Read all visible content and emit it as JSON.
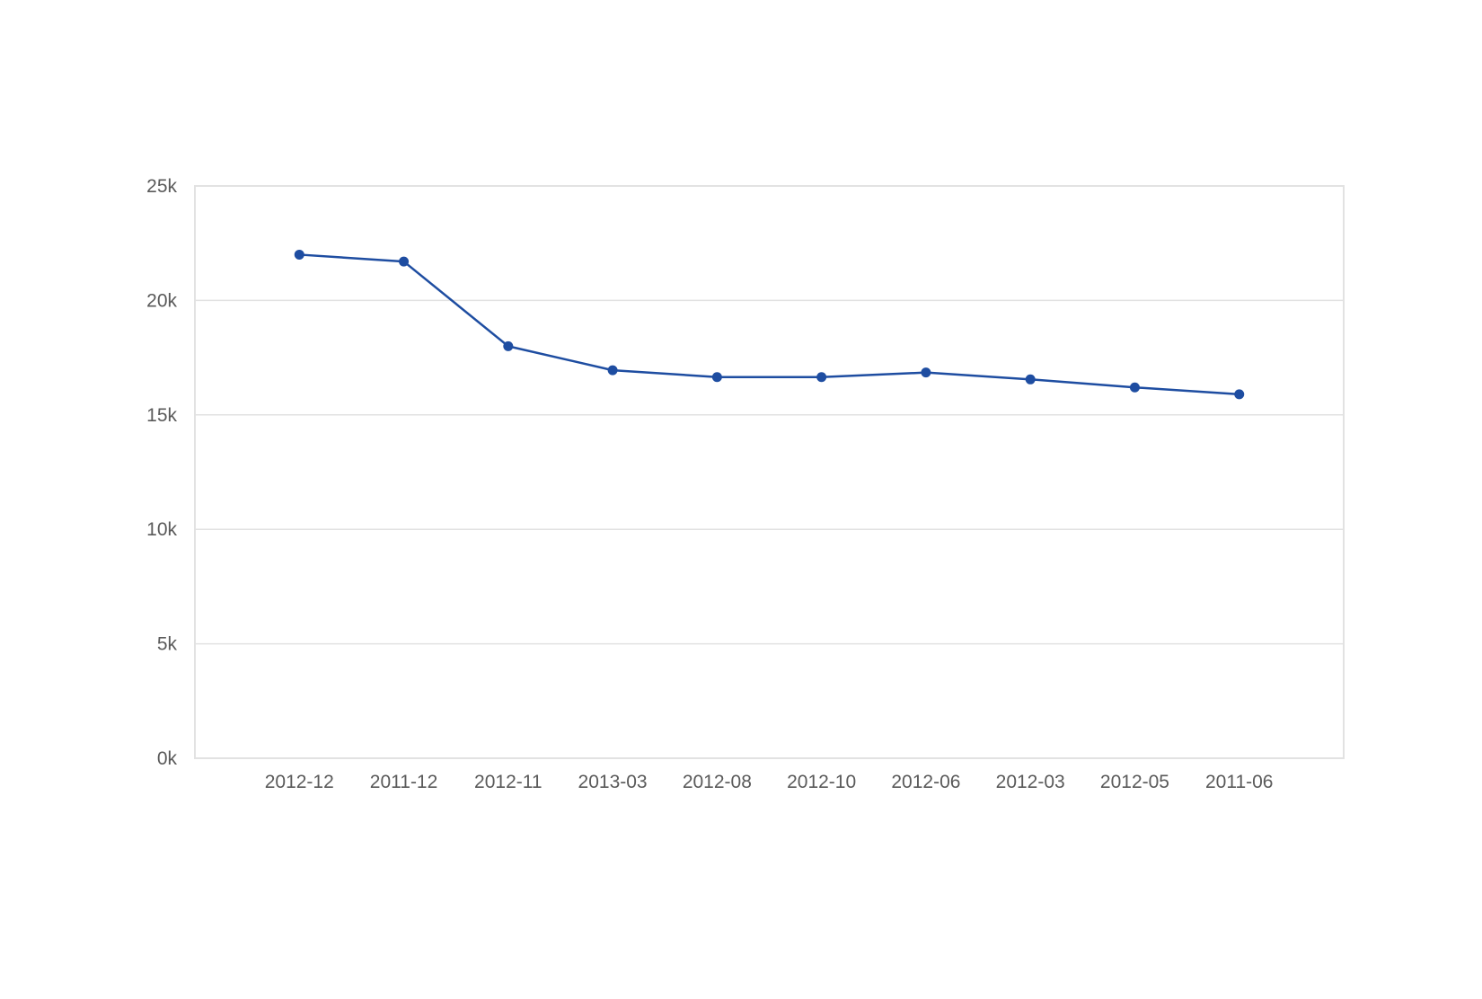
{
  "page": {
    "background_color": "#ffffff"
  },
  "chart_data": {
    "type": "line",
    "title": "",
    "xlabel": "",
    "ylabel": "",
    "categories": [
      "2012-12",
      "2011-12",
      "2012-11",
      "2013-03",
      "2012-08",
      "2012-10",
      "2012-06",
      "2012-03",
      "2012-05",
      "2011-06"
    ],
    "values": [
      22000,
      21700,
      18000,
      16950,
      16650,
      16650,
      16850,
      16550,
      16200,
      15900
    ],
    "ylim": [
      0,
      25000
    ],
    "ytick_step": 5000,
    "ytick_labels": [
      "0k",
      "5k",
      "10k",
      "15k",
      "20k",
      "25k"
    ],
    "grid": "horizontal-only",
    "legend": "none",
    "marker": "circle",
    "colors": {
      "line": "#1e4da1",
      "marker": "#1e4da1",
      "grid": "#e2e2e2",
      "plot_border": "#e2e2e2",
      "tick_label": "#5a5a5a",
      "background": "#ffffff"
    }
  }
}
